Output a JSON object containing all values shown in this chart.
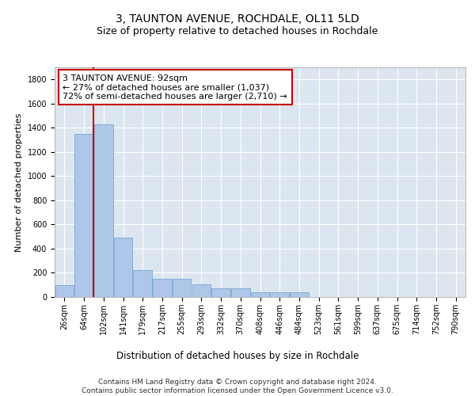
{
  "title1": "3, TAUNTON AVENUE, ROCHDALE, OL11 5LD",
  "title2": "Size of property relative to detached houses in Rochdale",
  "xlabel": "Distribution of detached houses by size in Rochdale",
  "ylabel": "Number of detached properties",
  "categories": [
    "26sqm",
    "64sqm",
    "102sqm",
    "141sqm",
    "179sqm",
    "217sqm",
    "255sqm",
    "293sqm",
    "332sqm",
    "370sqm",
    "408sqm",
    "446sqm",
    "484sqm",
    "523sqm",
    "561sqm",
    "599sqm",
    "637sqm",
    "675sqm",
    "714sqm",
    "752sqm",
    "790sqm"
  ],
  "values": [
    100,
    1350,
    1430,
    490,
    220,
    150,
    150,
    105,
    75,
    75,
    42,
    40,
    40,
    0,
    0,
    0,
    0,
    0,
    0,
    0,
    0
  ],
  "bar_color": "#aec6e8",
  "bar_edge_color": "#6a9fcb",
  "highlight_line_color": "#cc0000",
  "annotation_text": "3 TAUNTON AVENUE: 92sqm\n← 27% of detached houses are smaller (1,037)\n72% of semi-detached houses are larger (2,710) →",
  "annotation_box_color": "#ffffff",
  "annotation_box_edge": "#cc0000",
  "bg_color": "#dce6f0",
  "grid_color": "#ffffff",
  "ylim": [
    0,
    1900
  ],
  "yticks": [
    0,
    200,
    400,
    600,
    800,
    1000,
    1200,
    1400,
    1600,
    1800
  ],
  "footnote": "Contains HM Land Registry data © Crown copyright and database right 2024.\nContains public sector information licensed under the Open Government Licence v3.0.",
  "title1_fontsize": 10,
  "title2_fontsize": 9,
  "xlabel_fontsize": 8.5,
  "ylabel_fontsize": 8,
  "tick_fontsize": 7,
  "annot_fontsize": 8,
  "footnote_fontsize": 6.5
}
